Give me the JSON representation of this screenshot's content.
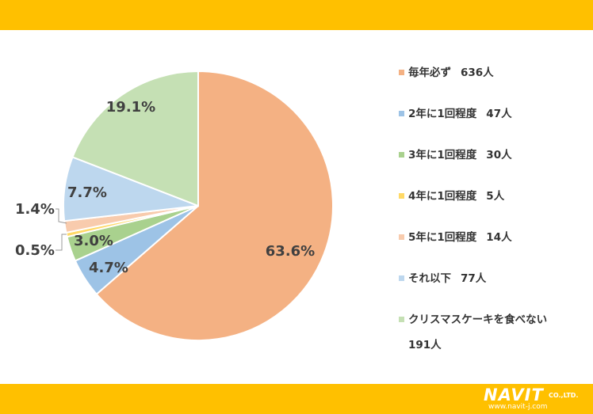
{
  "colors": {
    "banner": "#ffc000"
  },
  "chart_data": {
    "type": "pie",
    "start_angle_deg": 0,
    "direction": "clockwise",
    "legend_position": "right",
    "slices": [
      {
        "label": "毎年必ず",
        "count": "636人",
        "value": 63.6,
        "value_label": "63.6%",
        "color": "#f4b183"
      },
      {
        "label": "2年に1回程度",
        "count": "47人",
        "value": 4.7,
        "value_label": "4.7%",
        "color": "#9dc3e6"
      },
      {
        "label": "3年に1回程度",
        "count": "30人",
        "value": 3.0,
        "value_label": "3.0%",
        "color": "#a9d18e"
      },
      {
        "label": "4年に1回程度",
        "count": "5人",
        "value": 0.5,
        "value_label": "0.5%",
        "color": "#ffd966"
      },
      {
        "label": "5年に1回程度",
        "count": "14人",
        "value": 1.4,
        "value_label": "1.4%",
        "color": "#f8cbad"
      },
      {
        "label": "それ以下",
        "count": "77人",
        "value": 7.7,
        "value_label": "7.7%",
        "color": "#bdd7ee"
      },
      {
        "label": "クリスマスケーキを食べない",
        "count": "191人",
        "value": 19.1,
        "value_label": "19.1%",
        "color": "#c5e0b4"
      }
    ]
  },
  "logo": {
    "name": "NAVIT",
    "suffix": "CO.,LTD.",
    "url": "www.navit-j.com"
  }
}
